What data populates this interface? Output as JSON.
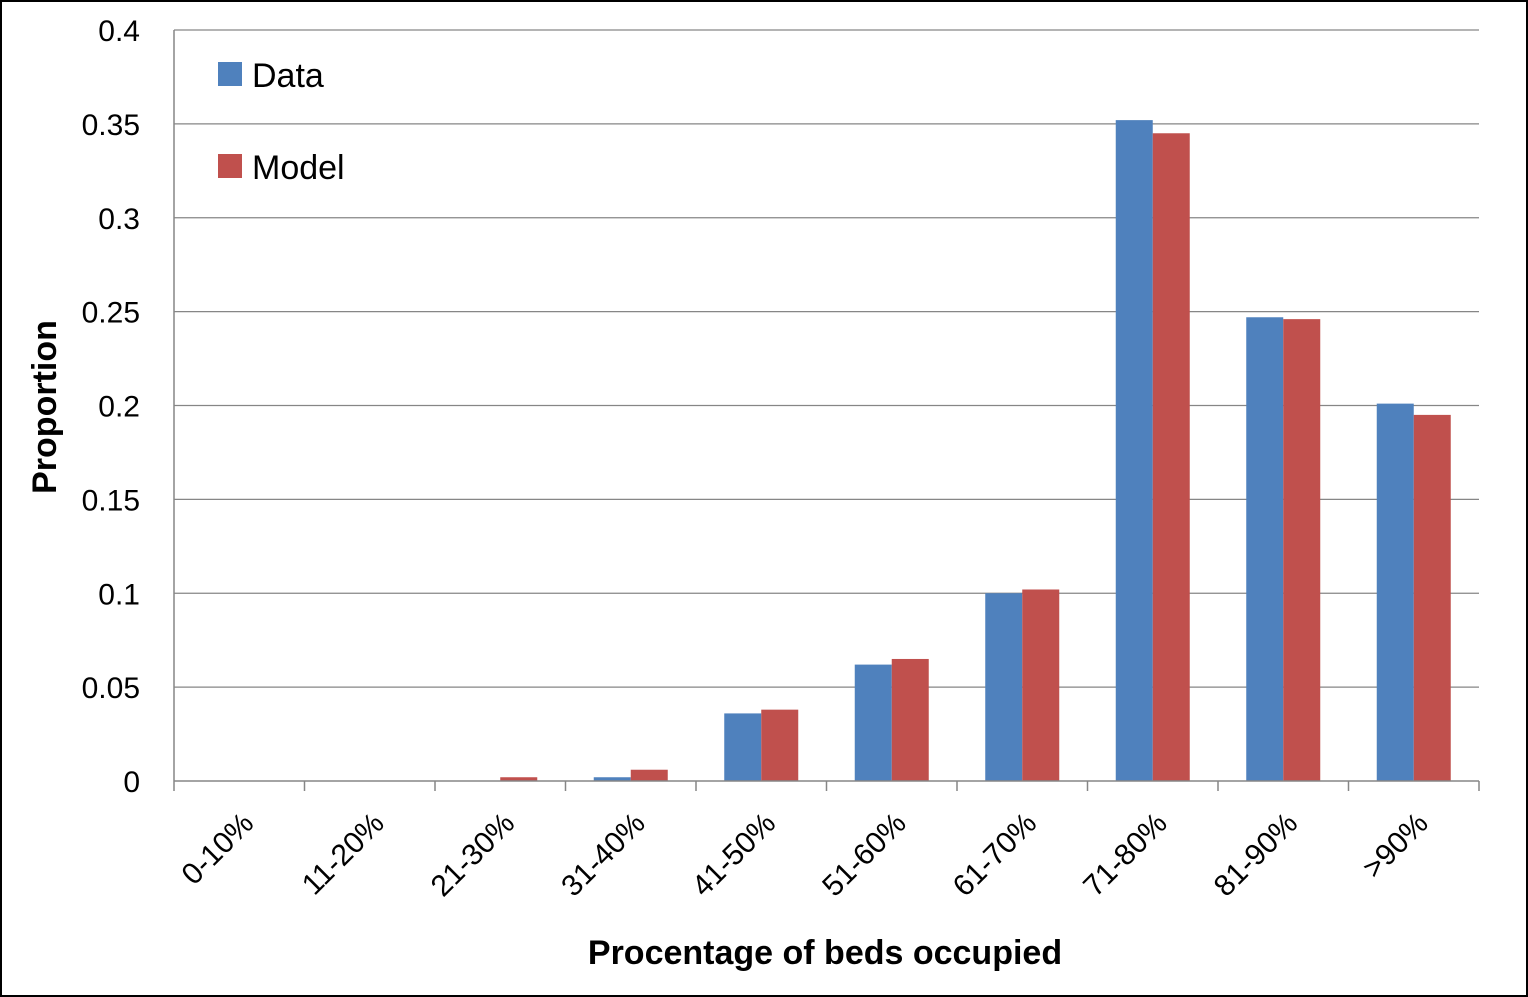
{
  "chart_data": {
    "type": "bar",
    "title": "",
    "xlabel": "Procentage of beds occupied",
    "ylabel": "Proportion",
    "ylim": [
      0,
      0.4
    ],
    "yticks": [
      0,
      0.05,
      0.1,
      0.15,
      0.2,
      0.25,
      0.3,
      0.35,
      0.4
    ],
    "ytick_labels": [
      "0",
      "0.05",
      "0.1",
      "0.15",
      "0.2",
      "0.25",
      "0.3",
      "0.35",
      "0.4"
    ],
    "grid": true,
    "legend_position": "top-left",
    "categories": [
      "0-10%",
      "11-20%",
      "21-30%",
      "31-40%",
      "41-50%",
      "51-60%",
      "61-70%",
      "71-80%",
      "81-90%",
      ">90%"
    ],
    "series": [
      {
        "name": "Data",
        "color": "#4f81bd",
        "values": [
          0,
          0,
          0,
          0.002,
          0.036,
          0.062,
          0.1,
          0.352,
          0.247,
          0.201
        ]
      },
      {
        "name": "Model",
        "color": "#c0504d",
        "values": [
          0,
          0,
          0.002,
          0.006,
          0.038,
          0.065,
          0.102,
          0.345,
          0.246,
          0.195
        ]
      }
    ]
  }
}
